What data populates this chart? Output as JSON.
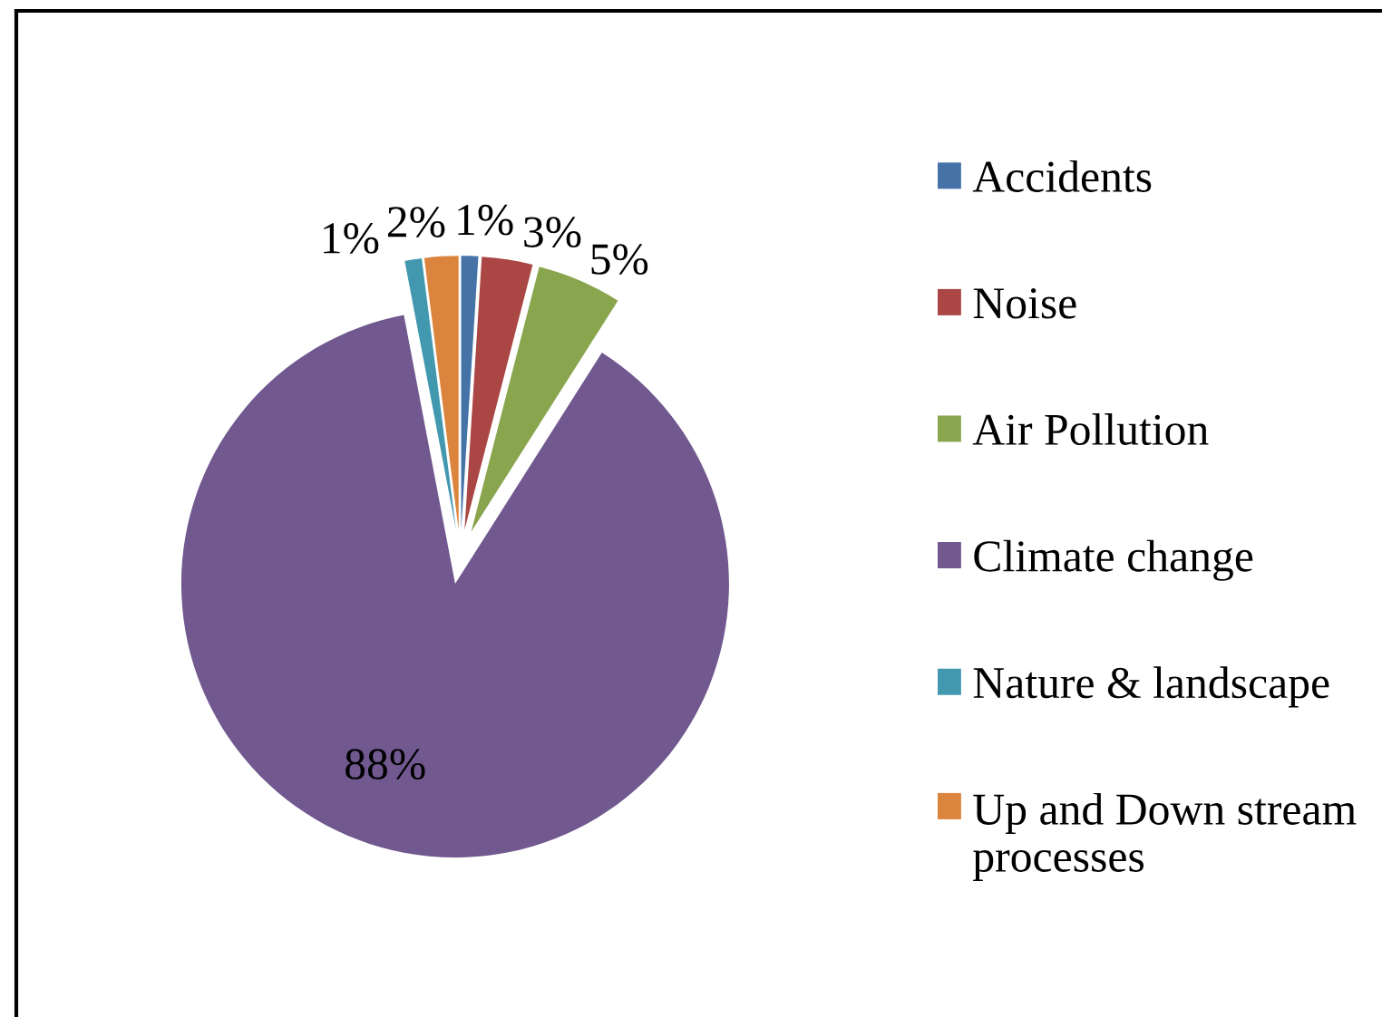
{
  "chart_data": {
    "type": "pie",
    "categories": [
      "Accidents",
      "Noise",
      "Air Pollution",
      "Climate change",
      "Nature & landscape",
      "Up and Down stream processes"
    ],
    "values": [
      1,
      3,
      5,
      88,
      1,
      2
    ],
    "colors": [
      "#4572a7",
      "#aa4643",
      "#89a54e",
      "#71588f",
      "#4198af",
      "#db843d"
    ],
    "value_labels": [
      "1%",
      "3%",
      "5%",
      "88%",
      "1%",
      "2%"
    ],
    "legend": "right"
  }
}
